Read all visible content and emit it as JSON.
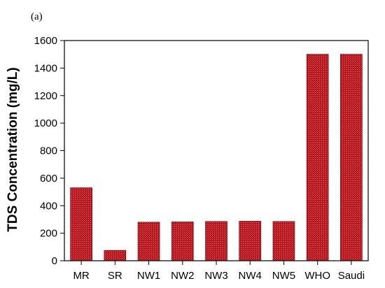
{
  "panel_label": "(a)",
  "colors": {
    "bar": "#b5121b",
    "bar_pattern": "#e07a7a",
    "axis": "#000000"
  },
  "chart_data": {
    "type": "bar",
    "title": "",
    "xlabel": "",
    "ylabel": "TDS Concentration (mg/L)",
    "categories": [
      "MR",
      "SR",
      "NW1",
      "NW2",
      "NW3",
      "NW4",
      "NW5",
      "WHO",
      "Saudi"
    ],
    "values": [
      530,
      75,
      280,
      282,
      285,
      287,
      285,
      1500,
      1500
    ],
    "ylim": [
      0,
      1600
    ],
    "yticks": [
      0,
      200,
      400,
      600,
      800,
      1000,
      1200,
      1400,
      1600
    ],
    "grid": false,
    "legend": "none"
  }
}
